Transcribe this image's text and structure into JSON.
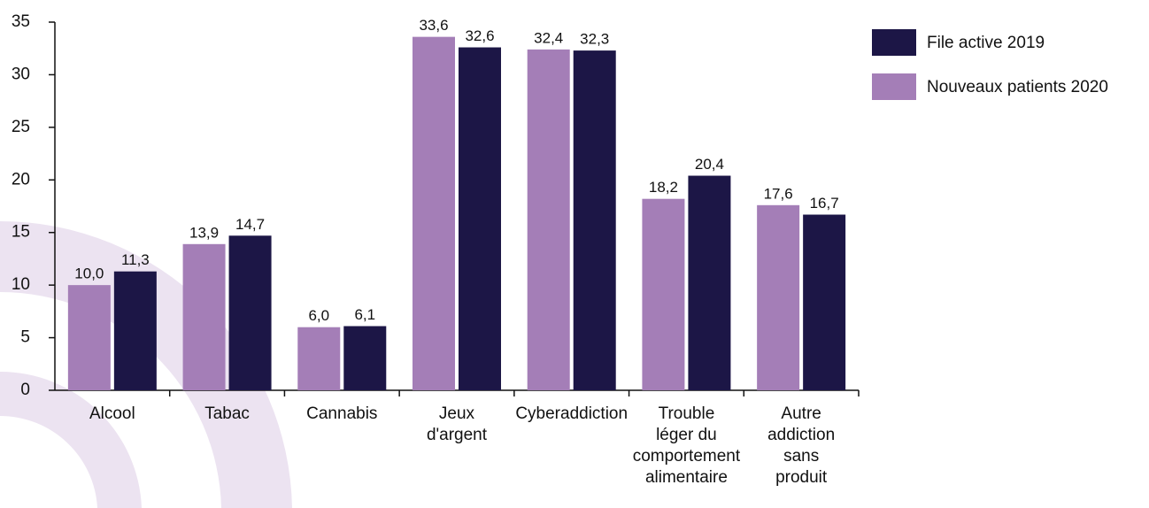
{
  "chart_data": {
    "type": "bar",
    "categories": [
      [
        "Alcool"
      ],
      [
        "Tabac"
      ],
      [
        "Cannabis"
      ],
      [
        "Jeux",
        "d'argent"
      ],
      [
        "Cyberaddiction"
      ],
      [
        "Trouble",
        "léger du",
        "comportement",
        "alimentaire"
      ],
      [
        "Autre",
        "addiction",
        "sans",
        "produit"
      ]
    ],
    "series": [
      {
        "name": "Nouveaux patients 2020",
        "color": "#a47eb7",
        "values": [
          10.0,
          13.9,
          6.0,
          33.6,
          32.4,
          18.2,
          17.6
        ],
        "value_labels": [
          "10,0",
          "13,9",
          "6,0",
          "33,6",
          "32,4",
          "18,2",
          "17,6"
        ]
      },
      {
        "name": "File active 2019",
        "color": "#1c1646",
        "values": [
          11.3,
          14.7,
          6.1,
          32.6,
          32.3,
          20.4,
          16.7
        ],
        "value_labels": [
          "11,3",
          "14,7",
          "6,1",
          "32,6",
          "32,3",
          "20,4",
          "16,7"
        ]
      }
    ],
    "ylim": [
      0,
      35
    ],
    "yticks": [
      0,
      5,
      10,
      15,
      20,
      25,
      30,
      35
    ],
    "grid": false,
    "legend": "upper right"
  }
}
